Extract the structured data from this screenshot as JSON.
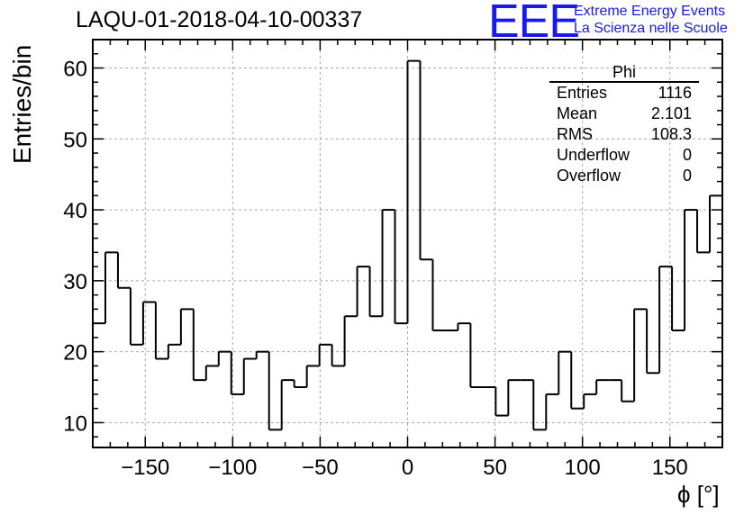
{
  "title": "LAQU-01-2018-04-10-00337",
  "logo": {
    "mark": "EEE",
    "line1": "Extreme Energy Events",
    "line2": "La Scienza nelle Scuole"
  },
  "stats": {
    "title": "Phi",
    "rows": [
      {
        "label": "Entries",
        "value": "1116"
      },
      {
        "label": "Mean",
        "value": "2.101"
      },
      {
        "label": "RMS",
        "value": "108.3"
      },
      {
        "label": "Underflow",
        "value": "0"
      },
      {
        "label": "Overflow",
        "value": "0"
      }
    ]
  },
  "chart_data": {
    "type": "bar",
    "histogram": true,
    "xlabel": "ϕ [°]",
    "ylabel": "Entries/bin",
    "xlim": [
      -180,
      180
    ],
    "ylim": [
      6.5,
      64
    ],
    "bin_width": 7.2,
    "bin_edges_start": -180,
    "values": [
      24,
      34,
      29,
      21,
      27,
      19,
      21,
      26,
      16,
      18,
      20,
      14,
      19,
      20,
      9,
      16,
      15,
      18,
      21,
      18,
      25,
      32,
      25,
      40,
      24,
      61,
      33,
      23,
      23,
      24,
      15,
      15,
      11,
      16,
      16,
      9,
      14,
      20,
      12,
      14,
      16,
      16,
      13,
      26,
      17,
      32,
      23,
      40,
      34,
      42
    ],
    "xticks": [
      -150,
      -100,
      -50,
      0,
      50,
      100,
      150
    ],
    "xtick_labels": [
      "−150",
      "−100",
      "−50",
      "0",
      "50",
      "100",
      "150"
    ],
    "yticks": [
      10,
      20,
      30,
      40,
      50,
      60
    ],
    "ytick_labels": [
      "10",
      "20",
      "30",
      "40",
      "50",
      "60"
    ],
    "grid": true,
    "colors": {
      "line": "#000000",
      "grid": "#aaaaaa"
    }
  }
}
